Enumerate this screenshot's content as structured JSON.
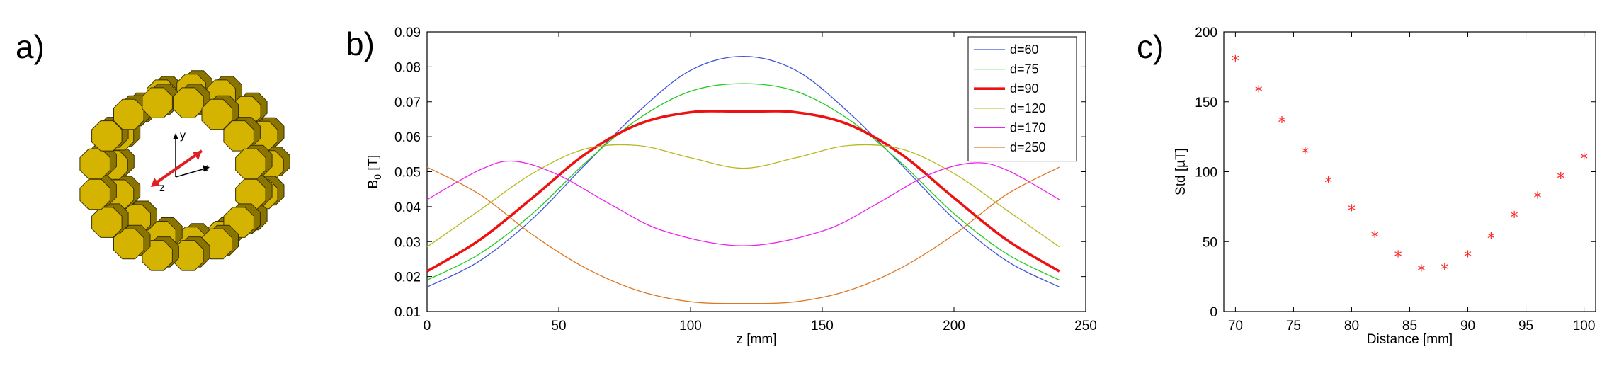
{
  "panel_labels": {
    "a": "a)",
    "b": "b)",
    "c": "c)"
  },
  "illustration": {
    "description_icon": "octagonal-magnet-ring-icon",
    "axes": {
      "x": "x",
      "y": "y",
      "z": "z"
    },
    "colors": {
      "magnet": "#d4b400",
      "magnet_dark": "#8a7400",
      "arrow": "#e02020"
    }
  },
  "chart_data": [
    {
      "id": "b",
      "type": "line",
      "title": "",
      "xlabel": "z [mm]",
      "ylabel": "B",
      "ylabel_sub": "0",
      "ylabel_unit": " [T]",
      "xlim": [
        0,
        250
      ],
      "ylim": [
        0.01,
        0.09
      ],
      "xticks": [
        0,
        50,
        100,
        150,
        200,
        250
      ],
      "xtick_labels": [
        "0",
        "50",
        "100",
        "150",
        "200",
        "250"
      ],
      "yticks": [
        0.01,
        0.02,
        0.03,
        0.04,
        0.05,
        0.06,
        0.07,
        0.08,
        0.09
      ],
      "ytick_labels": [
        "0.01",
        "0.02",
        "0.03",
        "0.04",
        "0.05",
        "0.06",
        "0.07",
        "0.08",
        "0.09"
      ],
      "grid": false,
      "legend": "top-right",
      "series": [
        {
          "name": "d=60",
          "color": "#3f55d8",
          "width": 1.3,
          "x": [
            0,
            20,
            40,
            60,
            80,
            100,
            120,
            140,
            160,
            180,
            200,
            220,
            240
          ],
          "y": [
            0.017,
            0.0245,
            0.0365,
            0.052,
            0.067,
            0.079,
            0.083,
            0.079,
            0.067,
            0.052,
            0.0365,
            0.0245,
            0.017
          ]
        },
        {
          "name": "d=75",
          "color": "#22cc22",
          "width": 1.3,
          "x": [
            0,
            20,
            40,
            60,
            80,
            100,
            120,
            140,
            160,
            180,
            200,
            220,
            240
          ],
          "y": [
            0.019,
            0.0265,
            0.038,
            0.0525,
            0.065,
            0.073,
            0.0752,
            0.073,
            0.065,
            0.0525,
            0.038,
            0.0265,
            0.019
          ]
        },
        {
          "name": "d=90",
          "color": "#ee1111",
          "width": 3.6,
          "x": [
            0,
            20,
            40,
            60,
            80,
            100,
            120,
            140,
            160,
            180,
            200,
            220,
            240
          ],
          "y": [
            0.0215,
            0.0305,
            0.0425,
            0.055,
            0.0635,
            0.067,
            0.0672,
            0.067,
            0.0635,
            0.055,
            0.0425,
            0.0305,
            0.0215
          ]
        },
        {
          "name": "d=120",
          "color": "#b8b81e",
          "width": 1.3,
          "x": [
            0,
            20,
            40,
            60,
            80,
            100,
            120,
            140,
            160,
            180,
            200,
            220,
            240
          ],
          "y": [
            0.0285,
            0.039,
            0.0495,
            0.0565,
            0.0575,
            0.054,
            0.051,
            0.054,
            0.0575,
            0.0565,
            0.0495,
            0.039,
            0.0285
          ]
        },
        {
          "name": "d=170",
          "color": "#ee22ee",
          "width": 1.3,
          "x": [
            0,
            20,
            33,
            50,
            70,
            90,
            120,
            150,
            170,
            190,
            207,
            220,
            240
          ],
          "y": [
            0.042,
            0.0505,
            0.053,
            0.049,
            0.0405,
            0.033,
            0.0288,
            0.033,
            0.0405,
            0.049,
            0.0525,
            0.0505,
            0.042
          ]
        },
        {
          "name": "d=250",
          "color": "#dd7722",
          "width": 1.3,
          "x": [
            0,
            20,
            40,
            60,
            80,
            100,
            120,
            140,
            160,
            180,
            200,
            220,
            240
          ],
          "y": [
            0.0513,
            0.0435,
            0.032,
            0.0225,
            0.016,
            0.0128,
            0.0123,
            0.0128,
            0.016,
            0.0225,
            0.032,
            0.0435,
            0.0513
          ]
        }
      ]
    },
    {
      "id": "c",
      "type": "scatter",
      "title": "",
      "xlabel": "Distance [mm]",
      "ylabel": "Std [µT]",
      "marker": "*",
      "marker_color": "#ff2a2a",
      "xlim": [
        69,
        101
      ],
      "ylim": [
        0,
        200
      ],
      "xticks": [
        70,
        75,
        80,
        85,
        90,
        95,
        100
      ],
      "xtick_labels": [
        "70",
        "75",
        "80",
        "85",
        "90",
        "95",
        "100"
      ],
      "yticks": [
        0,
        50,
        100,
        150,
        200
      ],
      "ytick_labels": [
        "0",
        "50",
        "100",
        "150",
        "200"
      ],
      "grid": false,
      "series": [
        {
          "name": "Std",
          "x": [
            70,
            72,
            74,
            76,
            78,
            80,
            82,
            84,
            86,
            88,
            90,
            92,
            94,
            96,
            98,
            100
          ],
          "y": [
            180,
            158,
            136,
            114,
            93,
            73,
            54,
            40,
            30,
            31,
            40,
            53,
            68,
            82,
            96,
            110
          ]
        }
      ]
    }
  ]
}
